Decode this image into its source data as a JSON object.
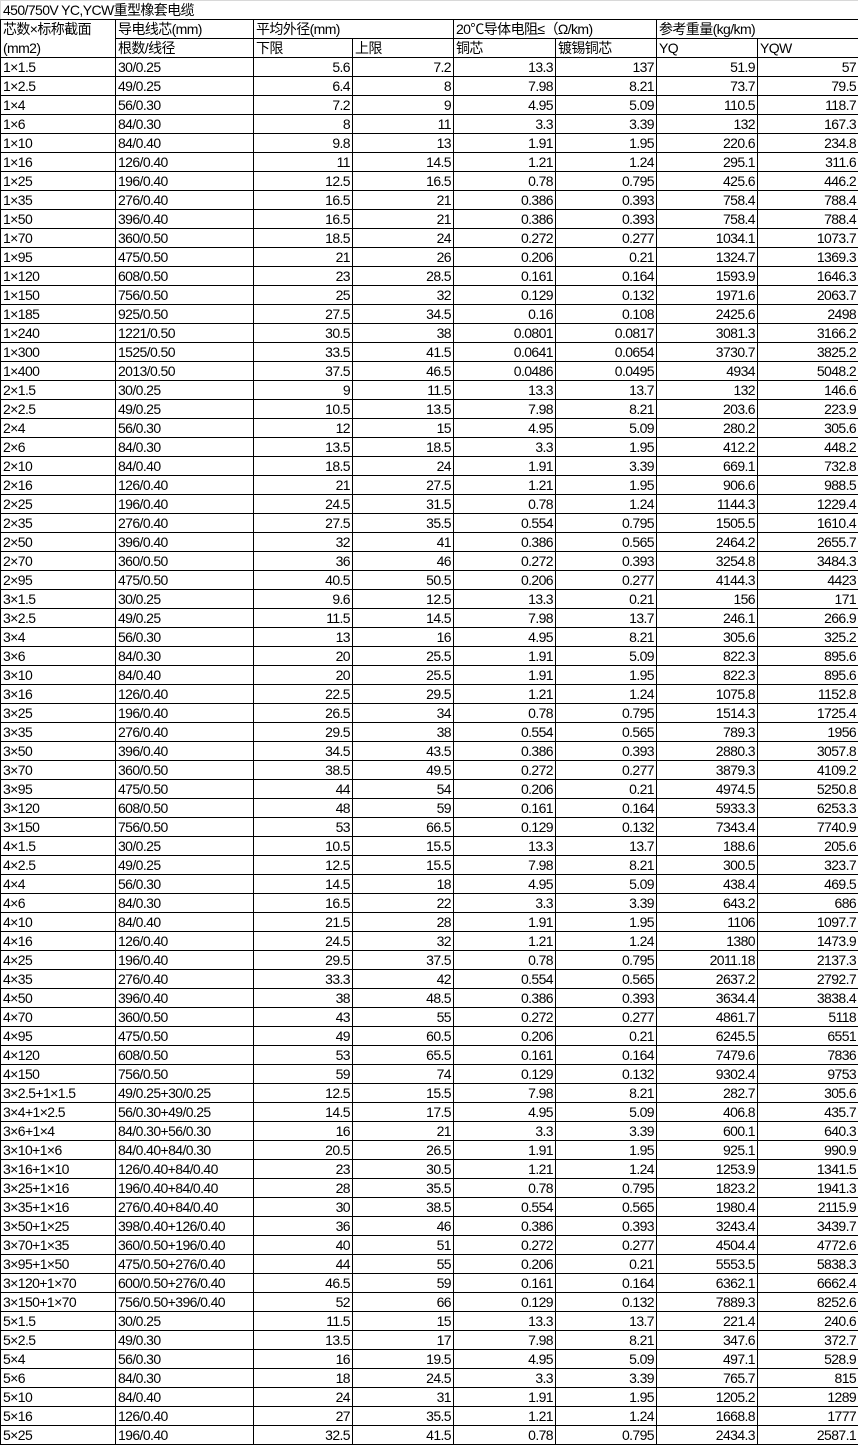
{
  "title": "450/750V YC,YCW重型橡套电缆",
  "header": {
    "col0_line1": "芯数×标称截面",
    "col0_line2": "(mm2)",
    "conductor": "导电线芯(mm)",
    "conductor_sub": "根数/线径",
    "diameter": "平均外径(mm)",
    "diameter_low": "下限",
    "diameter_high": "上限",
    "resistance": "20℃导体电阻≤（Ω/km)",
    "resistance_cu": "铜芯",
    "resistance_tin": "镀锡铜芯",
    "weight": "参考重量(kg/km)",
    "weight_yq": "YQ",
    "weight_yqw": "YQW"
  },
  "rows": [
    [
      "1×1.5",
      "30/0.25",
      "5.6",
      "7.2",
      "13.3",
      "137",
      "51.9",
      "57"
    ],
    [
      "1×2.5",
      "49/0.25",
      "6.4",
      "8",
      "7.98",
      "8.21",
      "73.7",
      "79.5"
    ],
    [
      "1×4",
      "56/0.30",
      "7.2",
      "9",
      "4.95",
      "5.09",
      "110.5",
      "118.7"
    ],
    [
      "1×6",
      "84/0.30",
      "8",
      "11",
      "3.3",
      "3.39",
      "132",
      "167.3"
    ],
    [
      "1×10",
      "84/0.40",
      "9.8",
      "13",
      "1.91",
      "1.95",
      "220.6",
      "234.8"
    ],
    [
      "1×16",
      "126/0.40",
      "11",
      "14.5",
      "1.21",
      "1.24",
      "295.1",
      "311.6"
    ],
    [
      "1×25",
      "196/0.40",
      "12.5",
      "16.5",
      "0.78",
      "0.795",
      "425.6",
      "446.2"
    ],
    [
      "1×35",
      "276/0.40",
      "16.5",
      "21",
      "0.386",
      "0.393",
      "758.4",
      "788.4"
    ],
    [
      "1×50",
      "396/0.40",
      "16.5",
      "21",
      "0.386",
      "0.393",
      "758.4",
      "788.4"
    ],
    [
      "1×70",
      "360/0.50",
      "18.5",
      "24",
      "0.272",
      "0.277",
      "1034.1",
      "1073.7"
    ],
    [
      "1×95",
      "475/0.50",
      "21",
      "26",
      "0.206",
      "0.21",
      "1324.7",
      "1369.3"
    ],
    [
      "1×120",
      "608/0.50",
      "23",
      "28.5",
      "0.161",
      "0.164",
      "1593.9",
      "1646.3"
    ],
    [
      "1×150",
      "756/0.50",
      "25",
      "32",
      "0.129",
      "0.132",
      "1971.6",
      "2063.7"
    ],
    [
      "1×185",
      "925/0.50",
      "27.5",
      "34.5",
      "0.16",
      "0.108",
      "2425.6",
      "2498"
    ],
    [
      "1×240",
      "1221/0.50",
      "30.5",
      "38",
      "0.0801",
      "0.0817",
      "3081.3",
      "3166.2"
    ],
    [
      "1×300",
      "1525/0.50",
      "33.5",
      "41.5",
      "0.0641",
      "0.0654",
      "3730.7",
      "3825.2"
    ],
    [
      "1×400",
      "2013/0.50",
      "37.5",
      "46.5",
      "0.0486",
      "0.0495",
      "4934",
      "5048.2"
    ],
    [
      "2×1.5",
      "30/0.25",
      "9",
      "11.5",
      "13.3",
      "13.7",
      "132",
      "146.6"
    ],
    [
      "2×2.5",
      "49/0.25",
      "10.5",
      "13.5",
      "7.98",
      "8.21",
      "203.6",
      "223.9"
    ],
    [
      "2×4",
      "56/0.30",
      "12",
      "15",
      "4.95",
      "5.09",
      "280.2",
      "305.6"
    ],
    [
      "2×6",
      "84/0.30",
      "13.5",
      "18.5",
      "3.3",
      "1.95",
      "412.2",
      "448.2"
    ],
    [
      "2×10",
      "84/0.40",
      "18.5",
      "24",
      "1.91",
      "3.39",
      "669.1",
      "732.8"
    ],
    [
      "2×16",
      "126/0.40",
      "21",
      "27.5",
      "1.21",
      "1.95",
      "906.6",
      "988.5"
    ],
    [
      "2×25",
      "196/0.40",
      "24.5",
      "31.5",
      "0.78",
      "1.24",
      "1144.3",
      "1229.4"
    ],
    [
      "2×35",
      "276/0.40",
      "27.5",
      "35.5",
      "0.554",
      "0.795",
      "1505.5",
      "1610.4"
    ],
    [
      "2×50",
      "396/0.40",
      "32",
      "41",
      "0.386",
      "0.565",
      "2464.2",
      "2655.7"
    ],
    [
      "2×70",
      "360/0.50",
      "36",
      "46",
      "0.272",
      "0.393",
      "3254.8",
      "3484.3"
    ],
    [
      "2×95",
      "475/0.50",
      "40.5",
      "50.5",
      "0.206",
      "0.277",
      "4144.3",
      "4423"
    ],
    [
      "3×1.5",
      "30/0.25",
      "9.6",
      "12.5",
      "13.3",
      "0.21",
      "156",
      "171"
    ],
    [
      "3×2.5",
      "49/0.25",
      "11.5",
      "14.5",
      "7.98",
      "13.7",
      "246.1",
      "266.9"
    ],
    [
      "3×4",
      "56/0.30",
      "13",
      "16",
      "4.95",
      "8.21",
      "305.6",
      "325.2"
    ],
    [
      "3×6",
      "84/0.30",
      "20",
      "25.5",
      "1.91",
      "5.09",
      "822.3",
      "895.6"
    ],
    [
      "3×10",
      "84/0.40",
      "20",
      "25.5",
      "1.91",
      "1.95",
      "822.3",
      "895.6"
    ],
    [
      "3×16",
      "126/0.40",
      "22.5",
      "29.5",
      "1.21",
      "1.24",
      "1075.8",
      "1152.8"
    ],
    [
      "3×25",
      "196/0.40",
      "26.5",
      "34",
      "0.78",
      "0.795",
      "1514.3",
      "1725.4"
    ],
    [
      "3×35",
      "276/0.40",
      "29.5",
      "38",
      "0.554",
      "0.565",
      "789.3",
      "1956"
    ],
    [
      "3×50",
      "396/0.40",
      "34.5",
      "43.5",
      "0.386",
      "0.393",
      "2880.3",
      "3057.8"
    ],
    [
      "3×70",
      "360/0.50",
      "38.5",
      "49.5",
      "0.272",
      "0.277",
      "3879.3",
      "4109.2"
    ],
    [
      "3×95",
      "475/0.50",
      "44",
      "54",
      "0.206",
      "0.21",
      "4974.5",
      "5250.8"
    ],
    [
      "3×120",
      "608/0.50",
      "48",
      "59",
      "0.161",
      "0.164",
      "5933.3",
      "6253.3"
    ],
    [
      "3×150",
      "756/0.50",
      "53",
      "66.5",
      "0.129",
      "0.132",
      "7343.4",
      "7740.9"
    ],
    [
      "4×1.5",
      "30/0.25",
      "10.5",
      "15.5",
      "13.3",
      "13.7",
      "188.6",
      "205.6"
    ],
    [
      "4×2.5",
      "49/0.25",
      "12.5",
      "15.5",
      "7.98",
      "8.21",
      "300.5",
      "323.7"
    ],
    [
      "4×4",
      "56/0.30",
      "14.5",
      "18",
      "4.95",
      "5.09",
      "438.4",
      "469.5"
    ],
    [
      "4×6",
      "84/0.30",
      "16.5",
      "22",
      "3.3",
      "3.39",
      "643.2",
      "686"
    ],
    [
      "4×10",
      "84/0.40",
      "21.5",
      "28",
      "1.91",
      "1.95",
      "1106",
      "1097.7"
    ],
    [
      "4×16",
      "126/0.40",
      "24.5",
      "32",
      "1.21",
      "1.24",
      "1380",
      "1473.9"
    ],
    [
      "4×25",
      "196/0.40",
      "29.5",
      "37.5",
      "0.78",
      "0.795",
      "2011.18",
      "2137.3"
    ],
    [
      "4×35",
      "276/0.40",
      "33.3",
      "42",
      "0.554",
      "0.565",
      "2637.2",
      "2792.7"
    ],
    [
      "4×50",
      "396/0.40",
      "38",
      "48.5",
      "0.386",
      "0.393",
      "3634.4",
      "3838.4"
    ],
    [
      "4×70",
      "360/0.50",
      "43",
      "55",
      "0.272",
      "0.277",
      "4861.7",
      "5118"
    ],
    [
      "4×95",
      "475/0.50",
      "49",
      "60.5",
      "0.206",
      "0.21",
      "6245.5",
      "6551"
    ],
    [
      "4×120",
      "608/0.50",
      "53",
      "65.5",
      "0.161",
      "0.164",
      "7479.6",
      "7836"
    ],
    [
      "4×150",
      "756/0.50",
      "59",
      "74",
      "0.129",
      "0.132",
      "9302.4",
      "9753"
    ],
    [
      "3×2.5+1×1.5",
      "49/0.25+30/0.25",
      "12.5",
      "15.5",
      "7.98",
      "8.21",
      "282.7",
      "305.6"
    ],
    [
      "3×4+1×2.5",
      "56/0.30+49/0.25",
      "14.5",
      "17.5",
      "4.95",
      "5.09",
      "406.8",
      "435.7"
    ],
    [
      "3×6+1×4",
      "84/0.30+56/0.30",
      "16",
      "21",
      "3.3",
      "3.39",
      "600.1",
      "640.3"
    ],
    [
      "3×10+1×6",
      "84/0.40+84/0.30",
      "20.5",
      "26.5",
      "1.91",
      "1.95",
      "925.1",
      "990.9"
    ],
    [
      "3×16+1×10",
      "126/0.40+84/0.40",
      "23",
      "30.5",
      "1.21",
      "1.24",
      "1253.9",
      "1341.5"
    ],
    [
      "3×25+1×16",
      "196/0.40+84/0.40",
      "28",
      "35.5",
      "0.78",
      "0.795",
      "1823.2",
      "1941.3"
    ],
    [
      "3×35+1×16",
      "276/0.40+84/0.40",
      "30",
      "38.5",
      "0.554",
      "0.565",
      "1980.4",
      "2115.9"
    ],
    [
      "3×50+1×25",
      "398/0.40+126/0.40",
      "36",
      "46",
      "0.386",
      "0.393",
      "3243.4",
      "3439.7"
    ],
    [
      "3×70+1×35",
      "360/0.50+196/0.40",
      "40",
      "51",
      "0.272",
      "0.277",
      "4504.4",
      "4772.6"
    ],
    [
      "3×95+1×50",
      "475/0.50+276/0.40",
      "44",
      "55",
      "0.206",
      "0.21",
      "5553.5",
      "5838.3"
    ],
    [
      "3×120+1×70",
      "600/0.50+276/0.40",
      "46.5",
      "59",
      "0.161",
      "0.164",
      "6362.1",
      "6662.4"
    ],
    [
      "3×150+1×70",
      "756/0.50+396/0.40",
      "52",
      "66",
      "0.129",
      "0.132",
      "7889.3",
      "8252.6"
    ],
    [
      "5×1.5",
      "30/0.25",
      "11.5",
      "15",
      "13.3",
      "13.7",
      "221.4",
      "240.6"
    ],
    [
      "5×2.5",
      "49/0.30",
      "13.5",
      "17",
      "7.98",
      "8.21",
      "347.6",
      "372.7"
    ],
    [
      "5×4",
      "56/0.30",
      "16",
      "19.5",
      "4.95",
      "5.09",
      "497.1",
      "528.9"
    ],
    [
      "5×6",
      "84/0.30",
      "18",
      "24.5",
      "3.3",
      "3.39",
      "765.7",
      "815"
    ],
    [
      "5×10",
      "84/0.40",
      "24",
      "31",
      "1.91",
      "1.95",
      "1205.2",
      "1289"
    ],
    [
      "5×16",
      "126/0.40",
      "27",
      "35.5",
      "1.21",
      "1.24",
      "1668.8",
      "1777"
    ],
    [
      "5×25",
      "196/0.40",
      "32.5",
      "41.5",
      "0.78",
      "0.795",
      "2434.3",
      "2587.1"
    ]
  ]
}
